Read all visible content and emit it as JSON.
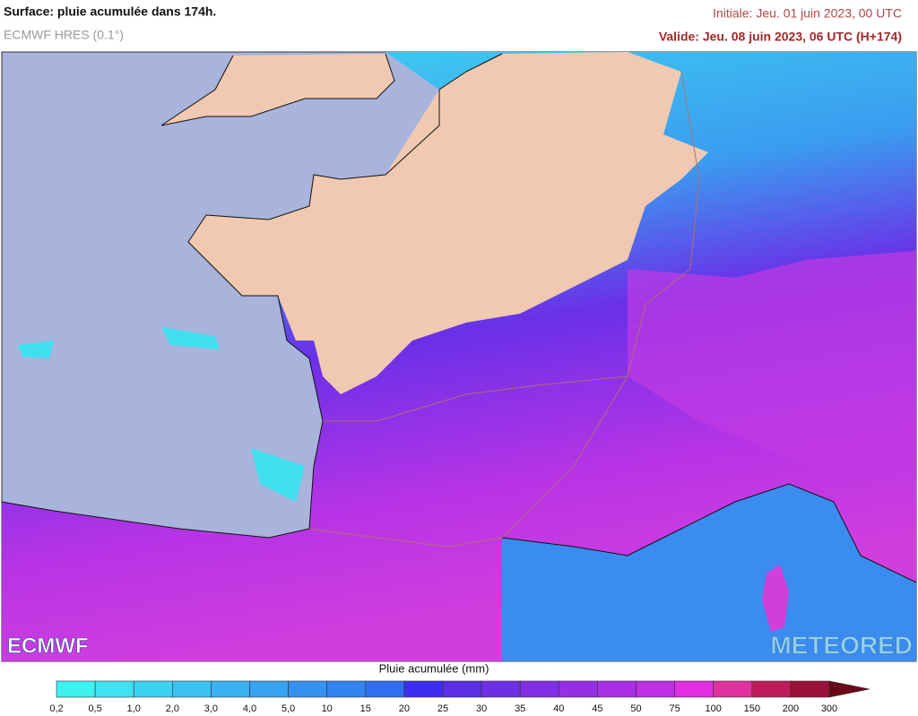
{
  "header": {
    "title": "Surface: pluie acumulée dans 174h.",
    "model": "ECMWF HRES (0.1°)",
    "initial": "Initiale: Jeu. 01 juin 2023, 00 UTC",
    "valid": "Valide: Jeu. 08 juin 2023, 06 UTC (H+174)"
  },
  "logos": {
    "left": "ECMWF",
    "right": "METEORED"
  },
  "legend": {
    "title": "Pluie acumulée (mm)",
    "labels": [
      "0,2",
      "0,5",
      "1,0",
      "2,0",
      "3,0",
      "4,0",
      "5,0",
      "10",
      "15",
      "20",
      "25",
      "30",
      "35",
      "40",
      "45",
      "50",
      "75",
      "100",
      "150",
      "200",
      "300"
    ],
    "colors": [
      "#3ef2f2",
      "#3ee2f2",
      "#3cd2f2",
      "#3ac2f2",
      "#38b2f2",
      "#36a2f2",
      "#3492f2",
      "#3282f2",
      "#306ef0",
      "#3c2ef0",
      "#5a2ee6",
      "#6e2ee6",
      "#822ee6",
      "#962ee6",
      "#aa2ee6",
      "#c02ee6",
      "#e02ee0",
      "#e0309e",
      "#c01c5c",
      "#9a1038",
      "#6a0818"
    ]
  }
}
